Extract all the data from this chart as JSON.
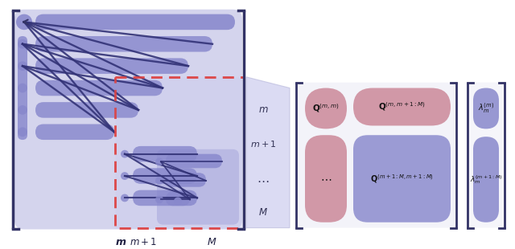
{
  "bg_color": "#ffffff",
  "blue_dark": "#3a3a7a",
  "blue_med": "#7878bb",
  "blue_light": "#aaaadd",
  "blue_fill": "#8888cc",
  "blue_xlite": "#ccccee",
  "pink_fill": "#cc8899",
  "pink_dark": "#bb6677",
  "dashed_color": "#dd4444",
  "bracket_color": "#333366",
  "line_color": "#333377"
}
